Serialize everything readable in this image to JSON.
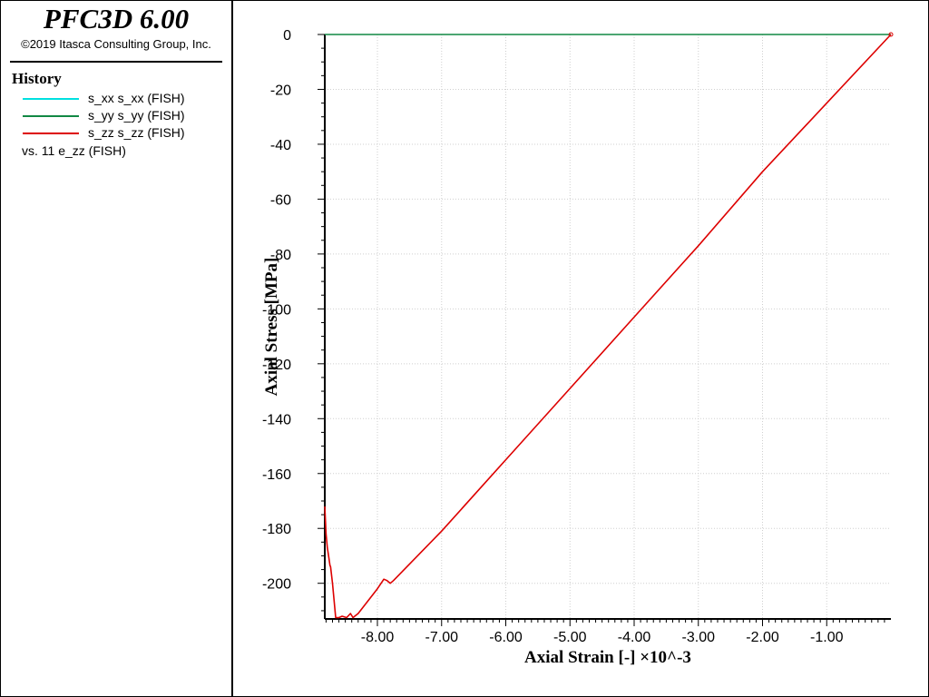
{
  "app": {
    "title": "PFC3D 6.00",
    "copyright": "©2019 Itasca Consulting Group, Inc."
  },
  "legend": {
    "heading": "History",
    "items": [
      {
        "label": "s_xx s_xx (FISH)",
        "color": "#00e0e0"
      },
      {
        "label": "s_yy s_yy (FISH)",
        "color": "#118844"
      },
      {
        "label": "s_zz s_zz (FISH)",
        "color": "#dd0000"
      }
    ],
    "vs_label": "vs. 11 e_zz (FISH)"
  },
  "chart_data": {
    "type": "line",
    "xlabel": "Axial Strain [-] ×10^-3",
    "ylabel": "Axial Stress [MPa]",
    "xlim": [
      -8.82,
      0.0
    ],
    "ylim": [
      -213,
      0
    ],
    "x_ticks": [
      -8.0,
      -7.0,
      -6.0,
      -5.0,
      -4.0,
      -3.0,
      -2.0,
      -1.0
    ],
    "x_tick_labels": [
      "-8.00",
      "-7.00",
      "-6.00",
      "-5.00",
      "-4.00",
      "-3.00",
      "-2.00",
      "-1.00"
    ],
    "y_ticks": [
      0,
      -20,
      -40,
      -60,
      -80,
      -100,
      -120,
      -140,
      -160,
      -180,
      -200
    ],
    "y_tick_labels": [
      "0",
      "-20",
      "-40",
      "-60",
      "-80",
      "-100",
      "-120",
      "-140",
      "-160",
      "-180",
      "-200"
    ],
    "grid": true,
    "series": [
      {
        "name": "s_yy s_yy (FISH)",
        "color": "#118844",
        "x": [
          -8.82,
          0.0
        ],
        "y": [
          0,
          0
        ]
      },
      {
        "name": "s_zz s_zz (FISH)",
        "color": "#dd0000",
        "x": [
          0.0,
          -1.0,
          -2.0,
          -3.0,
          -4.0,
          -5.0,
          -6.0,
          -7.0,
          -7.75,
          -7.8,
          -7.85,
          -7.9,
          -8.0,
          -8.3,
          -8.38,
          -8.42,
          -8.48,
          -8.55,
          -8.6,
          -8.65,
          -8.7,
          -8.72,
          -8.73,
          -8.74,
          -8.76,
          -8.78,
          -8.8,
          -8.82
        ],
        "y": [
          0,
          -25,
          -50,
          -77,
          -103,
          -129,
          -155,
          -181,
          -199,
          -200,
          -199,
          -198.5,
          -202,
          -211,
          -212.5,
          -211,
          -212.5,
          -212,
          -212.5,
          -212.5,
          -200,
          -196,
          -194,
          -193.5,
          -190,
          -187,
          -182,
          -172
        ]
      }
    ]
  }
}
